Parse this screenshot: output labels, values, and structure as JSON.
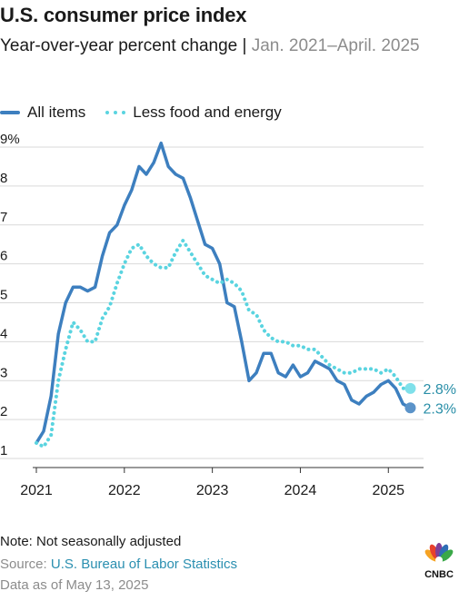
{
  "header": {
    "title": "U.S. consumer price index",
    "subtitle": "Year-over-year percent change |",
    "subtitle_range": "Jan. 2021–April. 2025"
  },
  "legend": {
    "all_items": "All items",
    "core": "Less food and energy"
  },
  "colors": {
    "all_items": "#3d7fbf",
    "core": "#5ad4e0",
    "gridline": "#d9d9d9"
  },
  "chart_data": {
    "type": "line",
    "title": "U.S. consumer price index",
    "subtitle": "Year-over-year percent change | Jan. 2021–April. 2025",
    "xlabel": "",
    "ylabel": "",
    "xlim": [
      2021.0,
      2025.4
    ],
    "ylim": [
      1,
      9
    ],
    "x_ticks": [
      2021,
      2022,
      2023,
      2024,
      2025
    ],
    "x_tick_labels": [
      "2021",
      "2022",
      "2023",
      "2024",
      "2025"
    ],
    "y_ticks": [
      1,
      2,
      3,
      4,
      5,
      6,
      7,
      8,
      9
    ],
    "y_tick_labels": [
      "1",
      "2",
      "3",
      "4",
      "5",
      "6",
      "7",
      "8",
      "9%"
    ],
    "grid": true,
    "legend_position": "top-left",
    "series": [
      {
        "name": "All items",
        "style": "solid",
        "end_label": "2.3%",
        "x": [
          2021.0,
          2021.083,
          2021.167,
          2021.25,
          2021.333,
          2021.417,
          2021.5,
          2021.583,
          2021.667,
          2021.75,
          2021.833,
          2021.917,
          2022.0,
          2022.083,
          2022.167,
          2022.25,
          2022.333,
          2022.417,
          2022.5,
          2022.583,
          2022.667,
          2022.75,
          2022.833,
          2022.917,
          2023.0,
          2023.083,
          2023.167,
          2023.25,
          2023.333,
          2023.417,
          2023.5,
          2023.583,
          2023.667,
          2023.75,
          2023.833,
          2023.917,
          2024.0,
          2024.083,
          2024.167,
          2024.25,
          2024.333,
          2024.417,
          2024.5,
          2024.583,
          2024.667,
          2024.75,
          2024.833,
          2024.917,
          2025.0,
          2025.083,
          2025.167,
          2025.25
        ],
        "y": [
          1.4,
          1.7,
          2.6,
          4.2,
          5.0,
          5.4,
          5.4,
          5.3,
          5.4,
          6.2,
          6.8,
          7.0,
          7.5,
          7.9,
          8.5,
          8.3,
          8.6,
          9.1,
          8.5,
          8.3,
          8.2,
          7.7,
          7.1,
          6.5,
          6.4,
          6.0,
          5.0,
          4.9,
          4.0,
          3.0,
          3.2,
          3.7,
          3.7,
          3.2,
          3.1,
          3.4,
          3.1,
          3.2,
          3.5,
          3.4,
          3.3,
          3.0,
          2.9,
          2.5,
          2.4,
          2.6,
          2.7,
          2.9,
          3.0,
          2.8,
          2.4,
          2.3
        ]
      },
      {
        "name": "Less food and energy",
        "style": "dotted",
        "end_label": "2.8%",
        "x": [
          2021.0,
          2021.083,
          2021.167,
          2021.25,
          2021.333,
          2021.417,
          2021.5,
          2021.583,
          2021.667,
          2021.75,
          2021.833,
          2021.917,
          2022.0,
          2022.083,
          2022.167,
          2022.25,
          2022.333,
          2022.417,
          2022.5,
          2022.583,
          2022.667,
          2022.75,
          2022.833,
          2022.917,
          2023.0,
          2023.083,
          2023.167,
          2023.25,
          2023.333,
          2023.417,
          2023.5,
          2023.583,
          2023.667,
          2023.75,
          2023.833,
          2023.917,
          2024.0,
          2024.083,
          2024.167,
          2024.25,
          2024.333,
          2024.417,
          2024.5,
          2024.583,
          2024.667,
          2024.75,
          2024.833,
          2024.917,
          2025.0,
          2025.083,
          2025.167,
          2025.25
        ],
        "y": [
          1.4,
          1.3,
          1.6,
          3.0,
          3.8,
          4.5,
          4.3,
          4.0,
          4.0,
          4.6,
          4.9,
          5.5,
          6.0,
          6.4,
          6.5,
          6.2,
          6.0,
          5.9,
          5.9,
          6.3,
          6.6,
          6.3,
          6.0,
          5.7,
          5.6,
          5.5,
          5.6,
          5.5,
          5.3,
          4.8,
          4.7,
          4.3,
          4.1,
          4.0,
          4.0,
          3.9,
          3.9,
          3.8,
          3.8,
          3.6,
          3.4,
          3.3,
          3.2,
          3.2,
          3.3,
          3.3,
          3.3,
          3.2,
          3.3,
          3.1,
          2.8,
          2.8
        ]
      }
    ]
  },
  "footer": {
    "note": "Note: Not seasonally adjusted",
    "source_prefix": "Source:",
    "source_link": "U.S. Bureau of Labor Statistics",
    "date": "Data as of May 13, 2025"
  },
  "logo": {
    "text": "CNBC",
    "icon": "peacock-icon"
  }
}
